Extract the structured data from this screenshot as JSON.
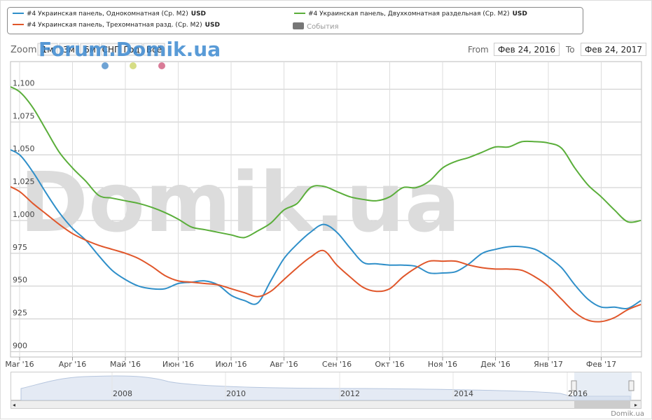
{
  "chart_data": {
    "type": "line",
    "unit": "USD",
    "events_label": "События",
    "zoom_label": "Zoom",
    "zoom_buttons": [
      "1м",
      "3м",
      "6м",
      "СНГ",
      "Год",
      "Всё"
    ],
    "from_label": "From",
    "from_date": "Фев 24, 2016",
    "to_label": "To",
    "to_date": "Фев 24, 2017",
    "watermark": "Domik.ua",
    "forum_watermark": "Forum.Domik.ua",
    "credit": "Domik.ua",
    "navigator_years": [
      "2008",
      "2010",
      "2012",
      "2014",
      "2016"
    ],
    "categories": [
      null,
      "Mar '16",
      null,
      null,
      null,
      "Apr '16",
      null,
      null,
      null,
      "Май '16",
      null,
      null,
      null,
      "Июн '16",
      null,
      null,
      null,
      "Июл '16",
      null,
      null,
      null,
      "Авг '16",
      null,
      null,
      null,
      "Сен '16",
      null,
      null,
      null,
      "Окт '16",
      null,
      null,
      null,
      "Ноя '16",
      null,
      null,
      null,
      "Дек '16",
      null,
      null,
      null,
      "Янв '17",
      null,
      null,
      null,
      "Фев '17",
      null,
      null,
      null
    ],
    "series": [
      {
        "name": "#4 Украинская панель, Однокомнатная (Ср. M2)",
        "color": "#2f8fc9",
        "values": [
          1055,
          1050,
          1037,
          1021,
          1006,
          994,
          985,
          973,
          962,
          955,
          950,
          948,
          948,
          952,
          953,
          954,
          951,
          943,
          939,
          937,
          954,
          971,
          982,
          991,
          997,
          991,
          979,
          968,
          967,
          966,
          966,
          965,
          960,
          960,
          961,
          967,
          975,
          978,
          980,
          980,
          978,
          972,
          964,
          951,
          940,
          934,
          934,
          933,
          939
        ]
      },
      {
        "name": "#4 Украинская панель, Двухкомнатная раздельная (Ср. M2)",
        "color": "#5aae3a",
        "values": [
          1103,
          1098,
          1086,
          1069,
          1052,
          1040,
          1030,
          1019,
          1017,
          1015,
          1013,
          1010,
          1006,
          1001,
          995,
          993,
          991,
          989,
          987,
          992,
          998,
          1008,
          1013,
          1025,
          1026,
          1022,
          1018,
          1016,
          1015,
          1018,
          1025,
          1025,
          1030,
          1040,
          1045,
          1048,
          1052,
          1056,
          1056,
          1060,
          1060,
          1059,
          1055,
          1040,
          1027,
          1018,
          1008,
          999,
          1000
        ]
      },
      {
        "name": "#4 Украинская панель, Трехомнатная разд. (Ср. M2)",
        "color": "#e0562a",
        "values": [
          1027,
          1022,
          1013,
          1005,
          997,
          990,
          985,
          981,
          978,
          975,
          971,
          965,
          958,
          954,
          953,
          952,
          951,
          948,
          945,
          942,
          946,
          955,
          964,
          972,
          977,
          966,
          957,
          949,
          946,
          948,
          957,
          964,
          969,
          969,
          969,
          966,
          964,
          963,
          963,
          962,
          957,
          950,
          940,
          930,
          924,
          923,
          926,
          932,
          936
        ]
      }
    ],
    "ylim": [
      896,
      1121
    ],
    "yticks": [
      900,
      925,
      950,
      975,
      {
        "value": 1000,
        "label": "1,000"
      },
      {
        "value": 1025,
        "label": "1,025"
      },
      {
        "value": 1050,
        "label": "1,050"
      },
      {
        "value": 1075,
        "label": "1,075"
      },
      {
        "value": 1100,
        "label": "1,100"
      }
    ],
    "grid": true
  }
}
